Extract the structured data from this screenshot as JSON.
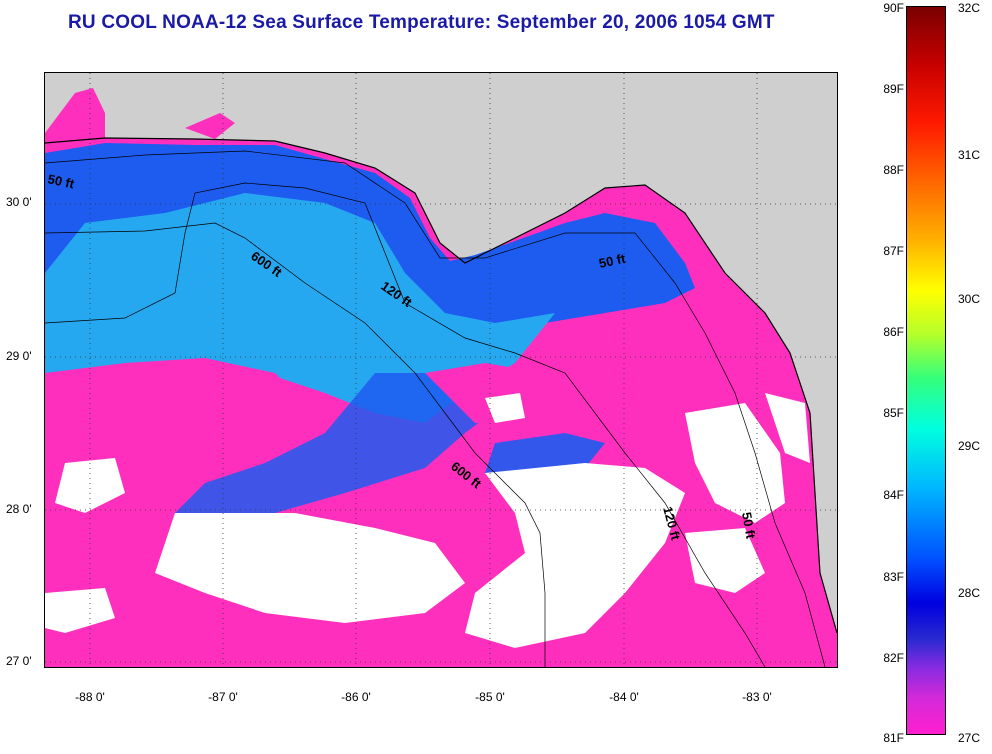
{
  "title": "RU COOL  NOAA-12  Sea Surface Temperature:  September 20, 2006 1054 GMT",
  "map": {
    "lat_labels": [
      "30 0'",
      "29 0'",
      "28 0'",
      "27 0'"
    ],
    "lon_labels": [
      "-88 0'",
      "-87 0'",
      "-86 0'",
      "-85 0'",
      "-84 0'",
      "-83 0'"
    ],
    "contour_labels": [
      "50 ft",
      "600 ft",
      "120 ft",
      "50 ft",
      "600 ft",
      "120 ft",
      "50 ft"
    ],
    "colors": {
      "land": "#cfcfcf",
      "clouds": "#ffffff",
      "warm": "#ff2fbe",
      "cool": "#1e5cf0",
      "mid": "#26a8f0"
    }
  },
  "colorbar": {
    "fahrenheit": [
      "90F",
      "89F",
      "88F",
      "87F",
      "86F",
      "85F",
      "84F",
      "83F",
      "82F",
      "81F"
    ],
    "celsius": [
      "32C",
      "31C",
      "30C",
      "29C",
      "28C",
      "27C"
    ]
  }
}
